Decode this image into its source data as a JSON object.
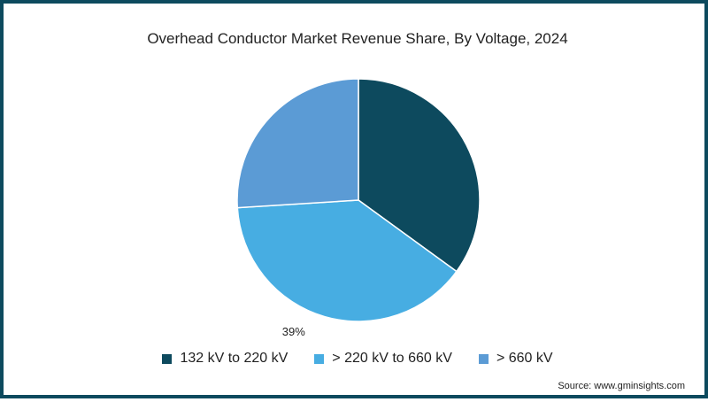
{
  "chart_data": {
    "type": "pie",
    "title": "Overhead Conductor Market Revenue Share, By Voltage, 2024",
    "slices": [
      {
        "label": "132 kV to 220 kV",
        "value": 35,
        "color": "#0d4a5e",
        "data_label": ""
      },
      {
        "label": "> 220 kV to 660 kV",
        "value": 39,
        "color": "#47ade2",
        "data_label": "39%"
      },
      {
        "label": "> 660 kV",
        "value": 26,
        "color": "#5b9bd5",
        "data_label": ""
      }
    ],
    "legend_position": "bottom"
  },
  "source": "Source: www.gminsights.com"
}
